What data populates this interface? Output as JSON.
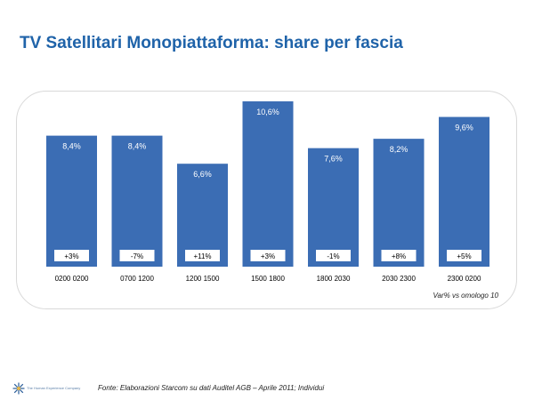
{
  "title": "TV Satellitari Monopiattaforma: share per fascia",
  "note": "Var% vs omologo 10",
  "footer": {
    "company": "The Human Experience Company",
    "source": "Fonte: Elaborazioni Starcom su dati Auditel AGB – Aprile 2011; Individui",
    "logo_icon": "starburst-logo-icon"
  },
  "colors": {
    "title": "#1f63a9",
    "bar": "#3b6db4",
    "bar_label": "#ffffff",
    "change_box_bg": "#ffffff",
    "change_box_text": "#000000"
  },
  "chart_data": {
    "type": "bar",
    "categories": [
      "0200 0200",
      "0700 1200",
      "1200 1500",
      "1500 1800",
      "1800 2030",
      "2030 2300",
      "2300 0200"
    ],
    "values": [
      8.4,
      8.4,
      6.6,
      10.6,
      7.6,
      8.2,
      9.6
    ],
    "value_labels": [
      "8,4%",
      "8,4%",
      "6,6%",
      "10,6%",
      "7,6%",
      "8,2%",
      "9,6%"
    ],
    "changes": [
      "+3%",
      "-7%",
      "+11%",
      "+3%",
      "-1%",
      "+8%",
      "+5%"
    ],
    "title": "",
    "xlabel": "",
    "ylabel": "",
    "ylim": [
      0,
      11
    ],
    "grid": false,
    "legend": "none"
  }
}
